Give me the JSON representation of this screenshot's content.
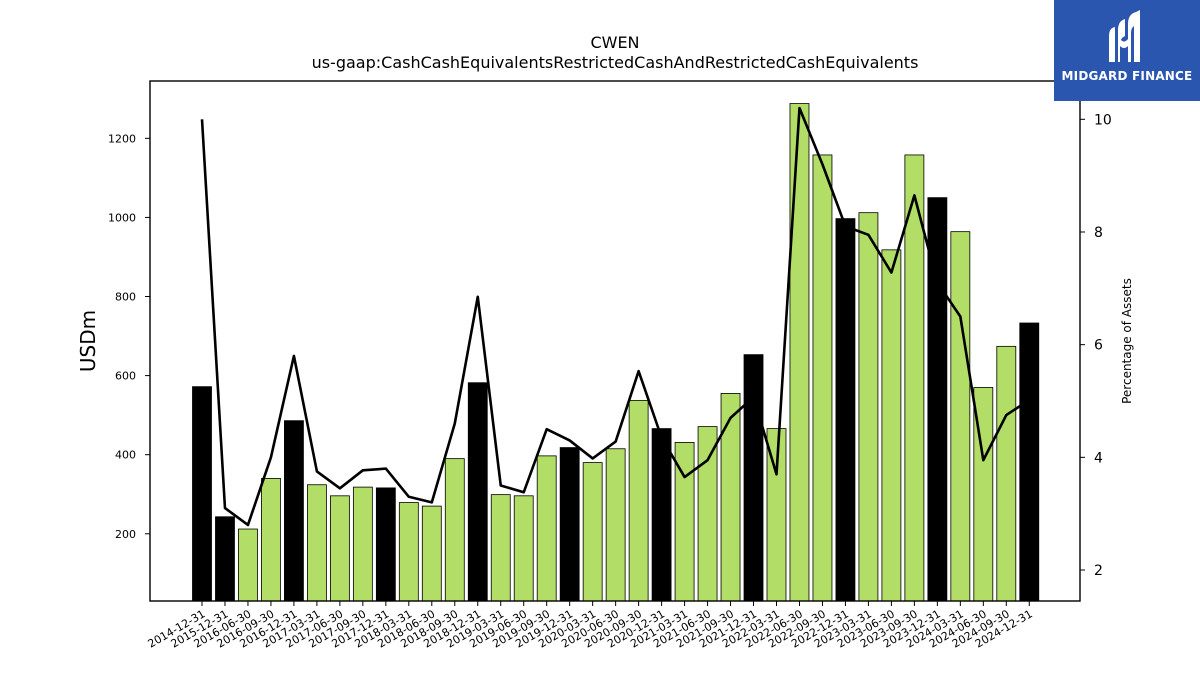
{
  "logo": {
    "text": "MIDGARD FINANCE",
    "background": "#2a56b0"
  },
  "chart_data": {
    "type": "bar",
    "title": "CWEN",
    "subtitle": "us-gaap:CashCashEquivalentsRestrictedCashAndRestrictedCashEquivalents",
    "ylabel": "USDm",
    "y2label": "Percentage of Assets",
    "ylim": [
      30,
      1345
    ],
    "y2lim": [
      1.45,
      10.68
    ],
    "yticks": [
      200,
      400,
      600,
      800,
      1000,
      1200
    ],
    "y2ticks": [
      2,
      4,
      6,
      8,
      10
    ],
    "categories": [
      "2014-12-31",
      "2015-12-31",
      "2016-06-30",
      "2016-09-30",
      "2016-12-31",
      "2017-03-31",
      "2017-06-30",
      "2017-09-30",
      "2017-12-31",
      "2018-03-31",
      "2018-06-30",
      "2018-09-30",
      "2018-12-31",
      "2019-03-31",
      "2019-06-30",
      "2019-09-30",
      "2019-12-31",
      "2020-03-31",
      "2020-06-30",
      "2020-09-30",
      "2020-12-31",
      "2021-03-31",
      "2021-06-30",
      "2021-09-30",
      "2021-12-31",
      "2022-03-31",
      "2022-06-30",
      "2022-09-30",
      "2022-12-31",
      "2023-03-31",
      "2023-06-30",
      "2023-09-30",
      "2023-12-31",
      "2024-03-31",
      "2024-06-30",
      "2024-09-30",
      "2024-12-31"
    ],
    "series": [
      {
        "kind": "bar",
        "values": [
          572,
          243,
          212,
          340,
          486,
          324,
          296,
          318,
          316,
          279,
          270,
          390,
          582,
          299,
          296,
          397,
          418,
          380,
          415,
          537,
          466,
          431,
          471,
          555,
          653,
          466,
          1288,
          1158,
          997,
          1012,
          918,
          1158,
          1050,
          964,
          570,
          674,
          733
        ],
        "annual": [
          true,
          true,
          false,
          false,
          true,
          false,
          false,
          false,
          true,
          false,
          false,
          false,
          true,
          false,
          false,
          false,
          true,
          false,
          false,
          false,
          true,
          false,
          false,
          false,
          true,
          false,
          false,
          false,
          true,
          false,
          false,
          false,
          true,
          false,
          false,
          false,
          true
        ]
      },
      {
        "kind": "line",
        "axis": "right",
        "values": [
          10.0,
          3.1,
          2.8,
          4.0,
          5.8,
          3.75,
          3.45,
          3.77,
          3.8,
          3.3,
          3.2,
          4.6,
          6.85,
          3.5,
          3.38,
          4.5,
          4.3,
          3.98,
          4.28,
          5.53,
          4.35,
          3.65,
          3.95,
          4.7,
          5.07,
          3.7,
          10.2,
          9.2,
          8.1,
          7.95,
          7.28,
          8.65,
          7.1,
          6.5,
          3.95,
          4.75,
          5.02
        ]
      }
    ],
    "colors": {
      "annual_bar": "#000000",
      "quarter_bar": "#b2dd67",
      "bar_edge": "#000000",
      "line": "#000000"
    }
  }
}
